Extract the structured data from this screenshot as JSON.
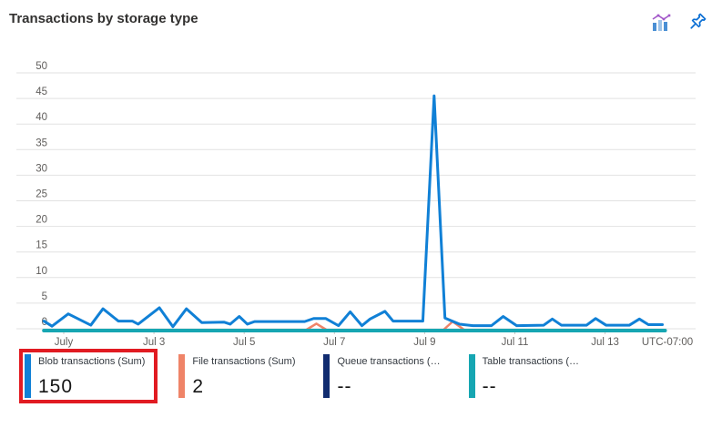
{
  "header": {
    "title": "Transactions by storage type",
    "icons": [
      "chart-type-icon",
      "pin-icon"
    ]
  },
  "chart_data": {
    "type": "line",
    "title": "Transactions by storage type",
    "x_axis": {
      "ticks": [
        {
          "day": 0,
          "label": "July"
        },
        {
          "day": 2,
          "label": "Jul 3"
        },
        {
          "day": 4,
          "label": "Jul 5"
        },
        {
          "day": 6,
          "label": "Jul 7"
        },
        {
          "day": 8,
          "label": "Jul 9"
        },
        {
          "day": 10,
          "label": "Jul 11"
        },
        {
          "day": 12,
          "label": "Jul 13"
        }
      ],
      "suffix_label": "UTC-07:00"
    },
    "y_axis": {
      "min": 0,
      "max": 50,
      "step": 5
    },
    "grid": true,
    "legend_position": "bottom",
    "series": [
      {
        "name": "Blob transactions (Sum)",
        "legend_value": "150",
        "color": "#1080d6",
        "width": 3,
        "draw_index": 2,
        "highlighted": true,
        "points": [
          [
            -0.44,
            1.5
          ],
          [
            -0.26,
            0.5
          ],
          [
            0.1,
            2.9
          ],
          [
            0.6,
            0.7
          ],
          [
            0.87,
            3.9
          ],
          [
            1.21,
            1.5
          ],
          [
            1.52,
            1.5
          ],
          [
            1.65,
            0.9
          ],
          [
            2.12,
            4.1
          ],
          [
            2.42,
            0.4
          ],
          [
            2.72,
            3.9
          ],
          [
            3.06,
            1.2
          ],
          [
            3.55,
            1.3
          ],
          [
            3.69,
            0.9
          ],
          [
            3.89,
            2.4
          ],
          [
            4.07,
            0.9
          ],
          [
            4.23,
            1.4
          ],
          [
            5.34,
            1.4
          ],
          [
            5.54,
            2.0
          ],
          [
            5.81,
            2.0
          ],
          [
            6.09,
            0.6
          ],
          [
            6.35,
            3.3
          ],
          [
            6.61,
            0.6
          ],
          [
            6.79,
            1.9
          ],
          [
            7.12,
            3.4
          ],
          [
            7.3,
            1.5
          ],
          [
            7.96,
            1.5
          ],
          [
            8.21,
            45.5
          ],
          [
            8.45,
            2.1
          ],
          [
            8.77,
            0.9
          ],
          [
            9.07,
            0.6
          ],
          [
            9.48,
            0.6
          ],
          [
            9.74,
            2.4
          ],
          [
            10.04,
            0.6
          ],
          [
            10.64,
            0.7
          ],
          [
            10.83,
            1.9
          ],
          [
            11.03,
            0.7
          ],
          [
            11.59,
            0.7
          ],
          [
            11.79,
            2.0
          ],
          [
            12.02,
            0.7
          ],
          [
            12.54,
            0.7
          ],
          [
            12.76,
            1.9
          ],
          [
            12.96,
            0.8
          ],
          [
            13.27,
            0.8
          ]
        ]
      },
      {
        "name": "File transactions (Sum)",
        "legend_value": "2",
        "color": "#ef8468",
        "width": 2.5,
        "draw_index": 0,
        "highlighted": false,
        "points": [
          [
            -0.44,
            0
          ],
          [
            5.35,
            0
          ],
          [
            5.6,
            1.0
          ],
          [
            5.85,
            0
          ],
          [
            8.4,
            0
          ],
          [
            8.62,
            1.4
          ],
          [
            8.9,
            0
          ],
          [
            13.3,
            0
          ]
        ]
      },
      {
        "name": "Queue transactions (…",
        "legend_value": "--",
        "color": "#112c70",
        "width": 3,
        "draw_index": -1,
        "highlighted": false,
        "points": []
      },
      {
        "name": "Table transactions (…",
        "legend_value": "--",
        "color": "#16a6b2",
        "width": 4,
        "draw_index": 1,
        "highlighted": false,
        "points": [
          [
            -0.44,
            0
          ],
          [
            13.33,
            0
          ]
        ]
      }
    ],
    "colors": {
      "grid": "#e2e2e2",
      "axis_text": "#605e5c",
      "tick": "#c8c6c4",
      "highlight_box": "#e11b22",
      "icon_blue": "#0b6fd4",
      "icon_purple": "#a257c9"
    }
  }
}
